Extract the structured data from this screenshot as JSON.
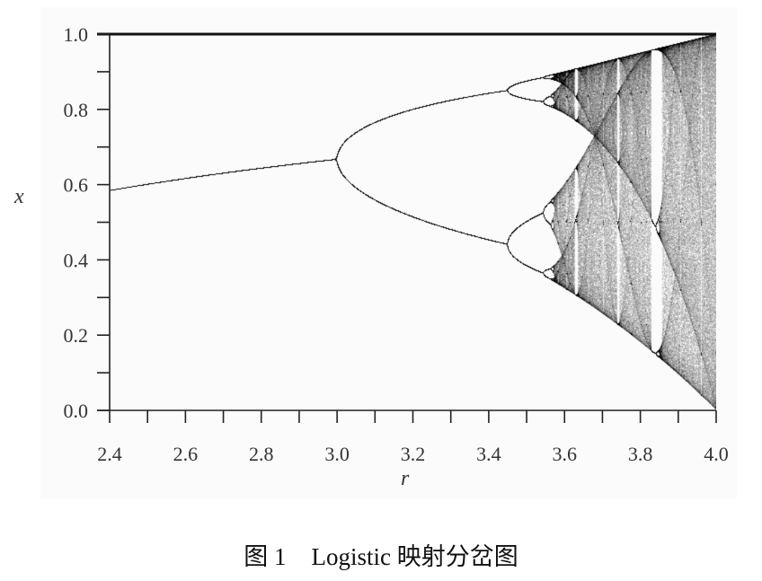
{
  "chart_data": {
    "type": "scatter",
    "description_of_series": "logistic map x_{n+1} = r x_n (1 - x_n), asymptotic x values",
    "map": "x_{n+1} = r * x_n * (1 - x_n)",
    "xlabel": "r",
    "ylabel": "x",
    "xlim": [
      2.4,
      4.0
    ],
    "ylim": [
      0.0,
      1.0
    ],
    "xticks": [
      "2.4",
      "2.6",
      "2.8",
      "3.0",
      "3.2",
      "3.4",
      "3.6",
      "3.8",
      "4.0"
    ],
    "yticks": [
      "0.0",
      "0.2",
      "0.4",
      "0.6",
      "0.8",
      "1.0"
    ],
    "minor_tick_step_x": 0.1,
    "minor_tick_step_y": 0.1,
    "grid": false,
    "point_color": "#000000"
  },
  "caption": {
    "figure_label": "图 1",
    "text": "Logistic 映射分岔图"
  }
}
